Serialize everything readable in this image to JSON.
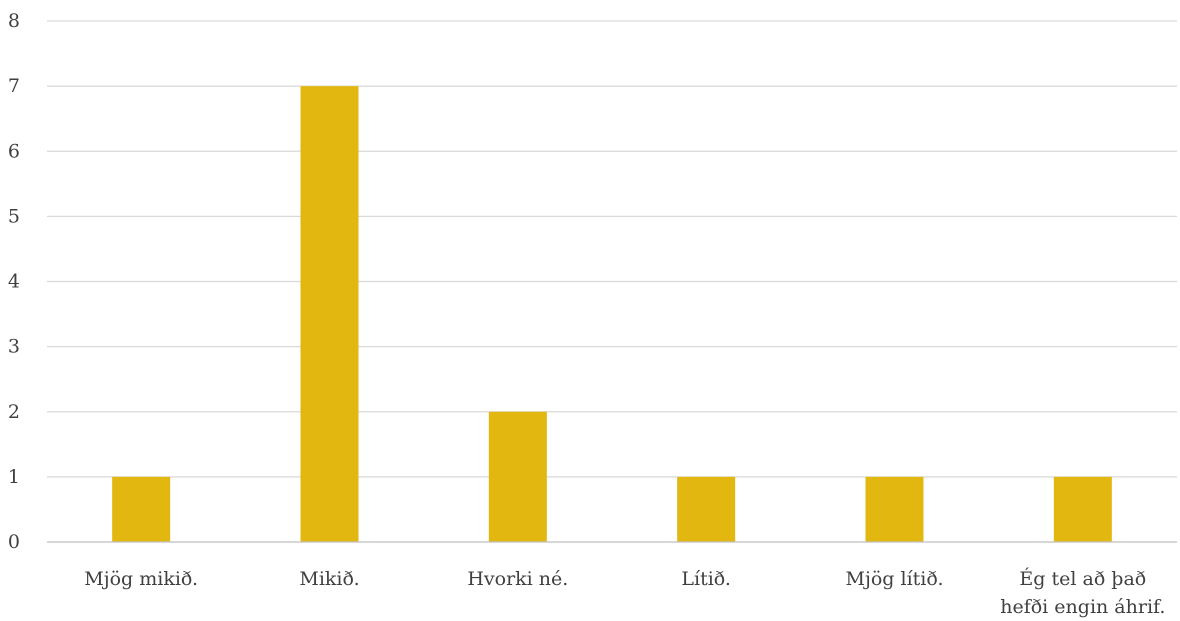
{
  "chart_data": {
    "type": "bar",
    "categories": [
      [
        "Mjög mikið."
      ],
      [
        "Mikið."
      ],
      [
        "Hvorki né."
      ],
      [
        "Lítið."
      ],
      [
        "Mjög lítið."
      ],
      [
        "Ég tel að það",
        "hefði engin áhrif."
      ]
    ],
    "values": [
      1,
      7,
      2,
      1,
      1,
      1
    ],
    "ylim": [
      0,
      8
    ],
    "yticks": [
      0,
      1,
      2,
      3,
      4,
      5,
      6,
      7,
      8
    ],
    "title": "",
    "xlabel": "",
    "ylabel": "",
    "grid": true,
    "bar_color": "#E2B710",
    "gridline_color": "#D9D9D9",
    "axis_color": "#BFBFBF",
    "text_color": "#404040"
  }
}
